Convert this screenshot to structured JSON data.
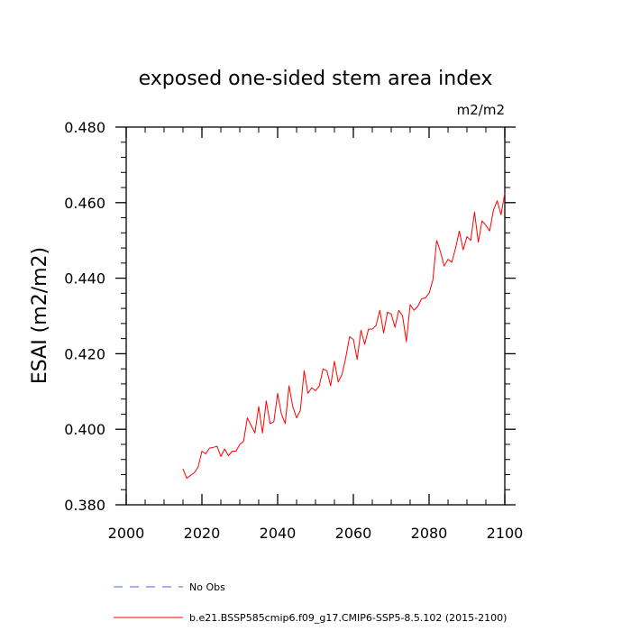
{
  "chart_data": {
    "type": "line",
    "title": "exposed one-sided stem area index",
    "units_label": "m2/m2",
    "xlabel": "",
    "ylabel": "ESAI  (m2/m2)",
    "xlim": [
      2000,
      2100
    ],
    "ylim": [
      0.38,
      0.48
    ],
    "xticks": [
      2000,
      2020,
      2040,
      2060,
      2080,
      2100
    ],
    "xtick_labels": [
      "2000",
      "2020",
      "2040",
      "2060",
      "2080",
      "2100"
    ],
    "yticks": [
      0.38,
      0.4,
      0.42,
      0.44,
      0.46,
      0.48
    ],
    "ytick_labels": [
      "0.380",
      "0.400",
      "0.420",
      "0.440",
      "0.460",
      "0.480"
    ],
    "grid": false,
    "series": [
      {
        "name": "b.e21.BSSP585cmip6.f09_g17.CMIP6-SSP5-8.5.102 (2015-2100)",
        "color": "#ff0000",
        "x": [
          2015,
          2016,
          2017,
          2018,
          2019,
          2020,
          2021,
          2022,
          2023,
          2024,
          2025,
          2026,
          2027,
          2028,
          2029,
          2030,
          2031,
          2032,
          2033,
          2034,
          2035,
          2036,
          2037,
          2038,
          2039,
          2040,
          2041,
          2042,
          2043,
          2044,
          2045,
          2046,
          2047,
          2048,
          2049,
          2050,
          2051,
          2052,
          2053,
          2054,
          2055,
          2056,
          2057,
          2058,
          2059,
          2060,
          2061,
          2062,
          2063,
          2064,
          2065,
          2066,
          2067,
          2068,
          2069,
          2070,
          2071,
          2072,
          2073,
          2074,
          2075,
          2076,
          2077,
          2078,
          2079,
          2080,
          2081,
          2082,
          2083,
          2084,
          2085,
          2086,
          2087,
          2088,
          2089,
          2090,
          2091,
          2092,
          2093,
          2094,
          2095,
          2096,
          2097,
          2098,
          2099,
          2100
        ],
        "values": [
          0.3895,
          0.387,
          0.3878,
          0.3885,
          0.39,
          0.3942,
          0.3935,
          0.395,
          0.3952,
          0.3955,
          0.3928,
          0.3948,
          0.393,
          0.3942,
          0.3942,
          0.396,
          0.3968,
          0.403,
          0.401,
          0.399,
          0.406,
          0.399,
          0.4075,
          0.4015,
          0.402,
          0.4095,
          0.404,
          0.4015,
          0.4115,
          0.406,
          0.403,
          0.405,
          0.4155,
          0.4095,
          0.411,
          0.4102,
          0.4115,
          0.416,
          0.4155,
          0.4115,
          0.418,
          0.4125,
          0.4145,
          0.419,
          0.4245,
          0.4238,
          0.4185,
          0.4262,
          0.4225,
          0.4265,
          0.4265,
          0.4275,
          0.4315,
          0.4255,
          0.431,
          0.4305,
          0.427,
          0.4315,
          0.43,
          0.4232,
          0.433,
          0.4315,
          0.4325,
          0.4345,
          0.4348,
          0.436,
          0.4395,
          0.45,
          0.447,
          0.4432,
          0.445,
          0.4442,
          0.448,
          0.4525,
          0.4475,
          0.451,
          0.45,
          0.4575,
          0.4495,
          0.4552,
          0.454,
          0.4525,
          0.458,
          0.4605,
          0.4568,
          0.4625
        ]
      },
      {
        "name": "No Obs",
        "color": "#4169e1",
        "x": [],
        "values": []
      }
    ],
    "legend": {
      "placement": "bottom-left",
      "entries": [
        {
          "label": "No Obs",
          "style": "dashed",
          "color": "#4169e1"
        },
        {
          "label": "b.e21.BSSP585cmip6.f09_g17.CMIP6-SSP5-8.5.102 (2015-2100)",
          "style": "solid",
          "color": "#ff0000"
        }
      ]
    }
  }
}
